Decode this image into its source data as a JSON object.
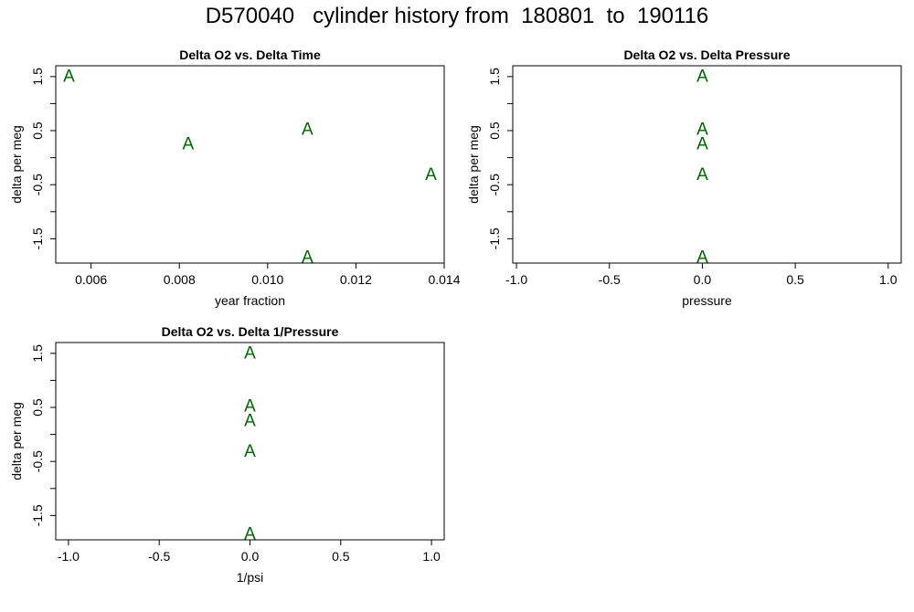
{
  "title": "D570040   cylinder history from  180801  to  190116",
  "colors": {
    "points": "#006400",
    "axes": "#000000"
  },
  "chart_data": [
    {
      "type": "scatter",
      "title": "Delta O2 vs. Delta Time",
      "xlabel": "year fraction",
      "ylabel": "delta per meg",
      "marker": "A",
      "xlim": [
        0.0052,
        0.014
      ],
      "ylim": [
        -1.95,
        1.7
      ],
      "xticks": [
        0.006,
        0.008,
        0.01,
        0.012,
        0.014
      ],
      "xtick_labels": [
        "0.006",
        "0.008",
        "0.010",
        "0.012",
        "0.014"
      ],
      "yticks": [
        -1.5,
        -1.0,
        -0.5,
        0.0,
        0.5,
        1.0,
        1.5
      ],
      "ytick_labels": [
        "-1.5",
        "",
        "-0.5",
        "",
        "0.5",
        "",
        "1.5"
      ],
      "points": [
        {
          "x": 0.0055,
          "y": 1.5
        },
        {
          "x": 0.0082,
          "y": 0.25
        },
        {
          "x": 0.0109,
          "y": 0.52
        },
        {
          "x": 0.0137,
          "y": -0.32
        },
        {
          "x": 0.0109,
          "y": -1.85
        }
      ]
    },
    {
      "type": "scatter",
      "title": "Delta O2 vs. Delta Pressure",
      "xlabel": "pressure",
      "ylabel": "delta per meg",
      "marker": "A",
      "xlim": [
        -1.02,
        1.07
      ],
      "ylim": [
        -1.95,
        1.7
      ],
      "xticks": [
        -1.0,
        -0.5,
        0.0,
        0.5,
        1.0
      ],
      "xtick_labels": [
        "-1.0",
        "-0.5",
        "0.0",
        "0.5",
        "1.0"
      ],
      "yticks": [
        -1.5,
        -1.0,
        -0.5,
        0.0,
        0.5,
        1.0,
        1.5
      ],
      "ytick_labels": [
        "-1.5",
        "",
        "-0.5",
        "",
        "0.5",
        "",
        "1.5"
      ],
      "points": [
        {
          "x": 0,
          "y": 1.5
        },
        {
          "x": 0,
          "y": 0.52
        },
        {
          "x": 0,
          "y": 0.25
        },
        {
          "x": 0,
          "y": -0.32
        },
        {
          "x": 0,
          "y": -1.85
        }
      ]
    },
    {
      "type": "scatter",
      "title": "Delta O2 vs. Delta 1/Pressure",
      "xlabel": "1/psi",
      "ylabel": "delta per meg",
      "marker": "A",
      "xlim": [
        -1.07,
        1.07
      ],
      "ylim": [
        -1.95,
        1.7
      ],
      "xticks": [
        -1.0,
        -0.5,
        0.0,
        0.5,
        1.0
      ],
      "xtick_labels": [
        "-1.0",
        "-0.5",
        "0.0",
        "0.5",
        "1.0"
      ],
      "yticks": [
        -1.5,
        -1.0,
        -0.5,
        0.0,
        0.5,
        1.0,
        1.5
      ],
      "ytick_labels": [
        "-1.5",
        "",
        "-0.5",
        "",
        "0.5",
        "",
        "1.5"
      ],
      "points": [
        {
          "x": 0,
          "y": 1.5
        },
        {
          "x": 0,
          "y": 0.52
        },
        {
          "x": 0,
          "y": 0.25
        },
        {
          "x": 0,
          "y": -0.32
        },
        {
          "x": 0,
          "y": -1.85
        }
      ]
    }
  ]
}
